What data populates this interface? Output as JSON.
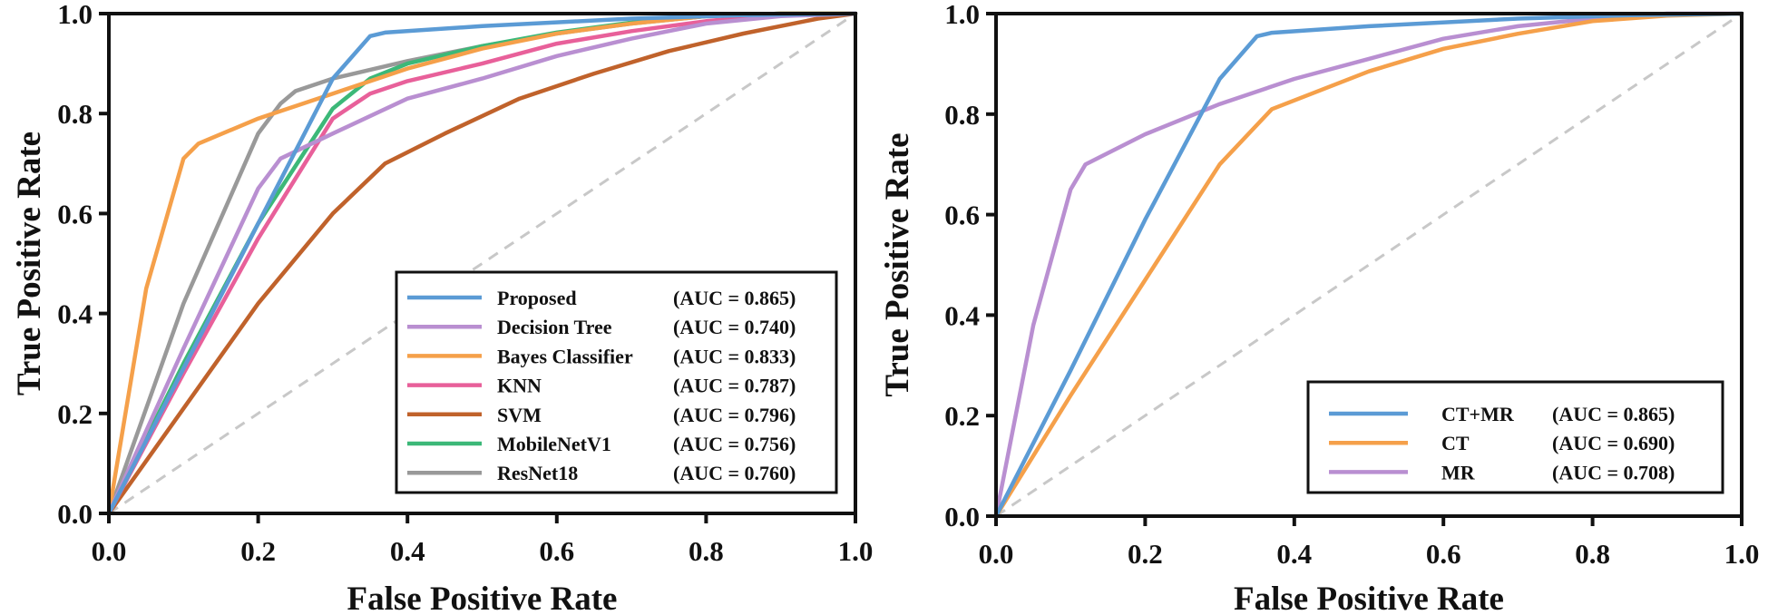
{
  "chart_data": [
    {
      "type": "line",
      "title": "",
      "xlabel": "False Positive Rate",
      "ylabel": "True Positive Rate",
      "xlim": [
        0,
        1
      ],
      "ylim": [
        0,
        1
      ],
      "xticks": [
        "0.0",
        "0.2",
        "0.4",
        "0.6",
        "0.8",
        "1.0"
      ],
      "yticks": [
        "0.0",
        "0.2",
        "0.4",
        "0.6",
        "0.8",
        "1.0"
      ],
      "grid": false,
      "legend_position": "bottom-right",
      "reference_line": {
        "x": [
          0,
          1
        ],
        "y": [
          0,
          1
        ],
        "style": "dashed",
        "color": "#c8c8c8"
      },
      "series": [
        {
          "name": "Proposed",
          "auc": "(AUC = 0.865)",
          "color": "#5b9bd5",
          "x": [
            0,
            0.1,
            0.2,
            0.3,
            0.35,
            0.37,
            0.5,
            0.7,
            0.85,
            1.0
          ],
          "y": [
            0,
            0.29,
            0.58,
            0.87,
            0.955,
            0.962,
            0.975,
            0.99,
            0.997,
            1.0
          ]
        },
        {
          "name": "Decision Tree",
          "auc": "(AUC = 0.740)",
          "color": "#b98fd1",
          "x": [
            0,
            0.1,
            0.2,
            0.23,
            0.3,
            0.4,
            0.5,
            0.6,
            0.7,
            0.8,
            0.9,
            1.0
          ],
          "y": [
            0,
            0.33,
            0.65,
            0.71,
            0.76,
            0.83,
            0.87,
            0.915,
            0.95,
            0.98,
            0.995,
            1.0
          ]
        },
        {
          "name": "Bayes Classifier",
          "auc": "(AUC = 0.833)",
          "color": "#f5a04a",
          "x": [
            0,
            0.05,
            0.1,
            0.12,
            0.2,
            0.3,
            0.4,
            0.5,
            0.6,
            0.7,
            0.8,
            0.9,
            1.0
          ],
          "y": [
            0,
            0.45,
            0.71,
            0.74,
            0.79,
            0.84,
            0.89,
            0.93,
            0.96,
            0.98,
            0.995,
            1.0,
            1.0
          ]
        },
        {
          "name": "KNN",
          "auc": "(AUC = 0.787)",
          "color": "#e8609a",
          "x": [
            0,
            0.1,
            0.2,
            0.3,
            0.35,
            0.4,
            0.5,
            0.6,
            0.7,
            0.8,
            0.9,
            1.0
          ],
          "y": [
            0,
            0.28,
            0.55,
            0.79,
            0.84,
            0.865,
            0.9,
            0.94,
            0.965,
            0.985,
            0.998,
            1.0
          ]
        },
        {
          "name": "SVM",
          "auc": "(AUC = 0.796)",
          "color": "#c0622b",
          "x": [
            0,
            0.1,
            0.2,
            0.3,
            0.37,
            0.45,
            0.55,
            0.65,
            0.75,
            0.85,
            0.95,
            1.0
          ],
          "y": [
            0,
            0.21,
            0.42,
            0.6,
            0.7,
            0.76,
            0.83,
            0.88,
            0.925,
            0.96,
            0.99,
            1.0
          ]
        },
        {
          "name": "MobileNetV1",
          "auc": "(AUC = 0.756)",
          "color": "#3cb878",
          "x": [
            0,
            0.1,
            0.2,
            0.3,
            0.35,
            0.4,
            0.5,
            0.6,
            0.7,
            0.8,
            0.9,
            1.0
          ],
          "y": [
            0,
            0.3,
            0.58,
            0.81,
            0.87,
            0.9,
            0.935,
            0.962,
            0.982,
            0.995,
            1.0,
            1.0
          ]
        },
        {
          "name": "ResNet18",
          "auc": "(AUC = 0.760)",
          "color": "#999999",
          "x": [
            0,
            0.1,
            0.2,
            0.23,
            0.25,
            0.3,
            0.4,
            0.5,
            0.6,
            0.7,
            0.8,
            0.9,
            1.0
          ],
          "y": [
            0,
            0.42,
            0.76,
            0.82,
            0.845,
            0.87,
            0.905,
            0.935,
            0.96,
            0.98,
            0.995,
            1.0,
            1.0
          ]
        }
      ]
    },
    {
      "type": "line",
      "title": "",
      "xlabel": "False Positive Rate",
      "ylabel": "True Positive Rate",
      "xlim": [
        0,
        1
      ],
      "ylim": [
        0,
        1
      ],
      "xticks": [
        "0.0",
        "0.2",
        "0.4",
        "0.6",
        "0.8",
        "1.0"
      ],
      "yticks": [
        "0.0",
        "0.2",
        "0.4",
        "0.6",
        "0.8",
        "1.0"
      ],
      "grid": false,
      "legend_position": "bottom-right",
      "reference_line": {
        "x": [
          0,
          1
        ],
        "y": [
          0,
          1
        ],
        "style": "dashed",
        "color": "#c8c8c8"
      },
      "series": [
        {
          "name": "CT+MR",
          "auc": "(AUC = 0.865)",
          "color": "#5b9bd5",
          "x": [
            0,
            0.1,
            0.2,
            0.3,
            0.35,
            0.37,
            0.5,
            0.7,
            0.85,
            1.0
          ],
          "y": [
            0,
            0.29,
            0.59,
            0.87,
            0.955,
            0.962,
            0.975,
            0.99,
            0.997,
            1.0
          ]
        },
        {
          "name": "CT",
          "auc": "(AUC = 0.690)",
          "color": "#f5a04a",
          "x": [
            0,
            0.1,
            0.2,
            0.3,
            0.37,
            0.5,
            0.6,
            0.7,
            0.8,
            0.9,
            1.0
          ],
          "y": [
            0,
            0.24,
            0.47,
            0.7,
            0.81,
            0.885,
            0.93,
            0.96,
            0.985,
            0.996,
            1.0
          ]
        },
        {
          "name": "MR",
          "auc": "(AUC = 0.708)",
          "color": "#b98fd1",
          "x": [
            0,
            0.05,
            0.1,
            0.12,
            0.2,
            0.3,
            0.4,
            0.5,
            0.6,
            0.7,
            0.8,
            0.9,
            1.0
          ],
          "y": [
            0,
            0.38,
            0.65,
            0.7,
            0.76,
            0.82,
            0.87,
            0.91,
            0.95,
            0.975,
            0.99,
            1.0,
            1.0
          ]
        }
      ]
    }
  ]
}
